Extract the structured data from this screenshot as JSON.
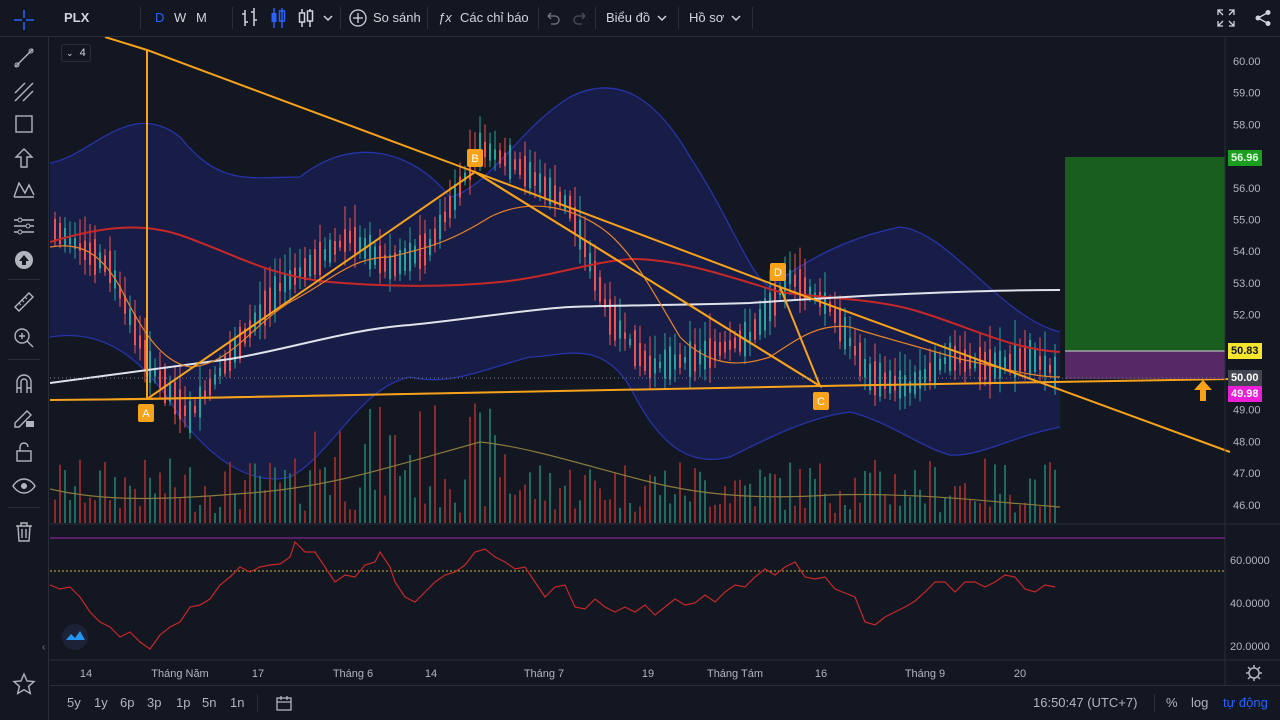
{
  "toolbar": {
    "symbol": "PLX",
    "intervals": [
      "D",
      "W",
      "M"
    ],
    "active_interval": "D",
    "compare_label": "So sánh",
    "indicators_label": "Các chỉ báo",
    "chart_label": "Biểu đồ",
    "profile_label": "Hồ sơ"
  },
  "legend": {
    "collapsed_count": "4"
  },
  "price_axis": {
    "ticks": [
      "60.00",
      "59.00",
      "58.00",
      "57.00",
      "56.00",
      "55.00",
      "54.00",
      "53.00",
      "52.00",
      "51.00",
      "50.00",
      "49.00",
      "48.00",
      "47.00",
      "46.00"
    ],
    "tag_target": "56.96",
    "tag_upper": "50.83",
    "tag_current": "50.00",
    "tag_stop": "49.98"
  },
  "rsi_axis": {
    "ticks": [
      "60.0000",
      "40.0000",
      "20.0000"
    ]
  },
  "time_axis": {
    "labels": [
      "14",
      "Tháng Năm",
      "17",
      "Tháng 6",
      "14",
      "Tháng 7",
      "19",
      "Tháng Tám",
      "16",
      "Tháng 9",
      "20"
    ]
  },
  "pattern_points": [
    "A",
    "B",
    "C",
    "D"
  ],
  "bottom": {
    "ranges": [
      "5y",
      "1y",
      "6p",
      "3p",
      "1p",
      "5n",
      "1n"
    ],
    "clock": "16:50:47 (UTC+7)",
    "percent_label": "%",
    "log_label": "log",
    "auto_label": "tự động"
  },
  "colors": {
    "background": "#131722",
    "up_candle": "#26a69a",
    "down_candle": "#ef5350",
    "pattern_line": "#f7a21b",
    "target_zone": "#1b6b1f",
    "stop_zone": "#5e2a6e",
    "bollinger_fill": "#1c2266"
  }
}
